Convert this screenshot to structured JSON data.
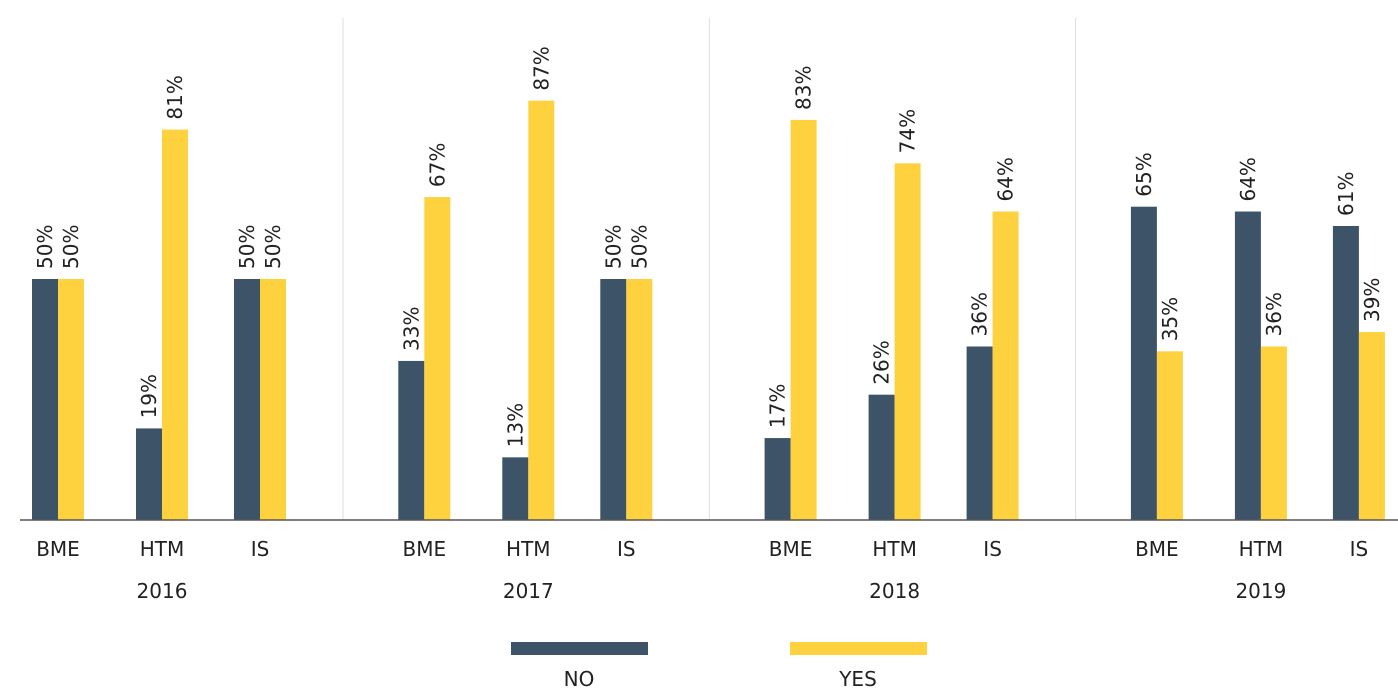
{
  "chart_data": {
    "type": "bar",
    "groups": [
      "2016",
      "2017",
      "2018",
      "2019"
    ],
    "categories": [
      "BME",
      "HTM",
      "IS",
      "BME",
      "HTM",
      "IS",
      "BME",
      "HTM",
      "IS",
      "BME",
      "HTM",
      "IS"
    ],
    "series": [
      {
        "name": "NO",
        "color": "#3d5368",
        "values": [
          50,
          19,
          50,
          33,
          13,
          50,
          17,
          26,
          36,
          65,
          64,
          61
        ],
        "value_labels": [
          "50%",
          "19%",
          "50%",
          "33%",
          "13%",
          "50%",
          "17%",
          "26%",
          "36%",
          "65%",
          "64%",
          "61%"
        ]
      },
      {
        "name": "YES",
        "color": "#fdd23e",
        "values": [
          50,
          81,
          50,
          67,
          87,
          50,
          83,
          74,
          64,
          35,
          36,
          39
        ],
        "value_labels": [
          "50%",
          "81%",
          "50%",
          "67%",
          "87%",
          "50%",
          "83%",
          "74%",
          "64%",
          "35%",
          "36%",
          "39%"
        ]
      }
    ],
    "legend": "bottom"
  }
}
